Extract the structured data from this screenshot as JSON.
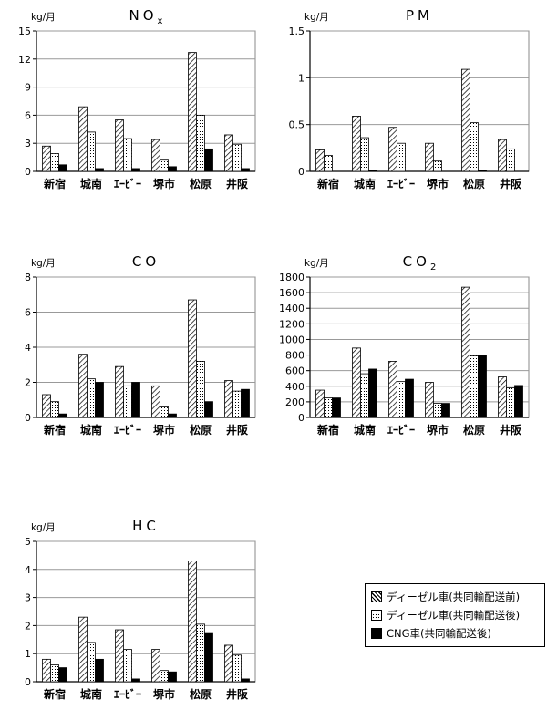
{
  "categories": [
    "新宿",
    "城南",
    "ｴｰﾋﾞｰ",
    "堺市",
    "松原",
    "井阪"
  ],
  "legend": [
    {
      "name": "ディーゼル車(共同輸配送前)",
      "pattern": "hatch"
    },
    {
      "name": "ディーゼル車(共同輸配送後)",
      "pattern": "dots"
    },
    {
      "name": "CNG車(共同輸配送後)",
      "pattern": "solid"
    }
  ],
  "chart_data": [
    {
      "type": "bar",
      "title": "NO",
      "title_sub": "x",
      "ylabel": "kg/月",
      "ylim": [
        0,
        15
      ],
      "yticks": [
        0,
        3,
        6,
        9,
        12,
        15
      ],
      "ytick_labels": [
        "0",
        "3",
        "6",
        "9",
        "12",
        "15"
      ],
      "grid": true,
      "series": [
        {
          "values": [
            2.7,
            6.9,
            5.5,
            3.4,
            12.7,
            3.9
          ]
        },
        {
          "values": [
            1.9,
            4.2,
            3.5,
            1.2,
            6.0,
            2.9
          ]
        },
        {
          "values": [
            0.7,
            0.3,
            0.3,
            0.5,
            2.4,
            0.3
          ]
        }
      ]
    },
    {
      "type": "bar",
      "title": "PM",
      "title_sub": "",
      "ylabel": "kg/月",
      "ylim": [
        0,
        1.5
      ],
      "yticks": [
        0,
        0.5,
        1,
        1.5
      ],
      "ytick_labels": [
        "0",
        "0.5",
        "1",
        "1.5"
      ],
      "grid": true,
      "series": [
        {
          "values": [
            0.23,
            0.59,
            0.47,
            0.3,
            1.09,
            0.34
          ]
        },
        {
          "values": [
            0.17,
            0.36,
            0.3,
            0.11,
            0.52,
            0.24
          ]
        },
        {
          "values": [
            0,
            0.01,
            0,
            0,
            0.01,
            0
          ]
        }
      ]
    },
    {
      "type": "bar",
      "title": "CO",
      "title_sub": "",
      "ylabel": "kg/月",
      "ylim": [
        0,
        8
      ],
      "yticks": [
        0,
        2,
        4,
        6,
        8
      ],
      "ytick_labels": [
        "0",
        "2",
        "4",
        "6",
        "8"
      ],
      "grid": true,
      "series": [
        {
          "values": [
            1.3,
            3.6,
            2.9,
            1.8,
            6.7,
            2.1
          ]
        },
        {
          "values": [
            0.9,
            2.2,
            1.8,
            0.6,
            3.2,
            1.5
          ]
        },
        {
          "values": [
            0.2,
            2.0,
            2.0,
            0.2,
            0.9,
            1.6
          ]
        }
      ]
    },
    {
      "type": "bar",
      "title": "CO",
      "title_sub": "2",
      "ylabel": "kg/月",
      "ylim": [
        0,
        1800
      ],
      "yticks": [
        0,
        200,
        400,
        600,
        800,
        1000,
        1200,
        1400,
        1600,
        1800
      ],
      "ytick_labels": [
        "0",
        "200",
        "400",
        "600",
        "800",
        "1000",
        "1200",
        "1400",
        "1600",
        "1800"
      ],
      "grid": true,
      "series": [
        {
          "values": [
            350,
            890,
            720,
            450,
            1670,
            520
          ]
        },
        {
          "values": [
            250,
            560,
            460,
            180,
            790,
            380
          ]
        },
        {
          "values": [
            250,
            620,
            490,
            180,
            790,
            410
          ]
        }
      ]
    },
    {
      "type": "bar",
      "title": "HC",
      "title_sub": "",
      "ylabel": "kg/月",
      "ylim": [
        0,
        5
      ],
      "yticks": [
        0,
        1,
        2,
        3,
        4,
        5
      ],
      "ytick_labels": [
        "0",
        "1",
        "2",
        "3",
        "4",
        "5"
      ],
      "grid": true,
      "series": [
        {
          "values": [
            0.8,
            2.3,
            1.85,
            1.15,
            4.3,
            1.3
          ]
        },
        {
          "values": [
            0.6,
            1.4,
            1.15,
            0.4,
            2.05,
            0.95
          ]
        },
        {
          "values": [
            0.5,
            0.8,
            0.1,
            0.35,
            1.75,
            0.1
          ]
        }
      ]
    }
  ]
}
